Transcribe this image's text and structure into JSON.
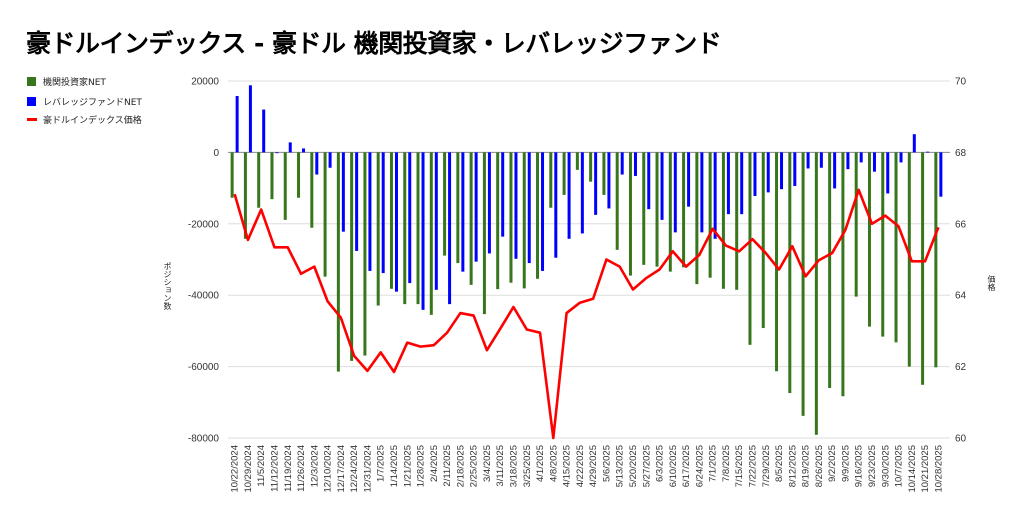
{
  "title": "豪ドルインデックス - 豪ドル 機関投資家・レバレッジファンド",
  "chart_data": {
    "type": "bar+line",
    "title": "豪ドルインデックス - 豪ドル 機関投資家・レバレッジファンド",
    "ylabel_left": "ポジション数",
    "ylabel_right": "価格",
    "ylim_left": [
      -80000,
      20000
    ],
    "yticks_left": [
      20000,
      0,
      -20000,
      -40000,
      -60000,
      -80000
    ],
    "ylim_right": [
      60,
      70
    ],
    "yticks_right": [
      70,
      68,
      66,
      64,
      62,
      60
    ],
    "grid": true,
    "legend_position": "top-left",
    "categories": [
      "10/22/2024",
      "10/29/2024",
      "11/5/2024",
      "11/12/2024",
      "11/19/2024",
      "11/26/2024",
      "12/3/2024",
      "12/10/2024",
      "12/17/2024",
      "12/24/2024",
      "12/31/2024",
      "1/7/2025",
      "1/14/2025",
      "1/21/2025",
      "1/28/2025",
      "2/4/2025",
      "2/11/2025",
      "2/18/2025",
      "2/25/2025",
      "3/4/2025",
      "3/11/2025",
      "3/18/2025",
      "3/25/2025",
      "4/1/2025",
      "4/8/2025",
      "4/15/2025",
      "4/22/2025",
      "4/29/2025",
      "5/6/2025",
      "5/13/2025",
      "5/20/2025",
      "5/27/2025",
      "6/3/2025",
      "6/10/2025",
      "6/17/2025",
      "6/24/2025",
      "7/1/2025",
      "7/8/2025",
      "7/15/2025",
      "7/22/2025",
      "7/29/2025",
      "8/5/2025",
      "8/12/2025",
      "8/19/2025",
      "8/26/2025",
      "9/2/2025",
      "9/9/2025",
      "9/16/2025",
      "9/23/2025",
      "9/30/2025",
      "10/7/2025",
      "10/14/2025",
      "10/21/2025",
      "10/28/2025"
    ],
    "series": [
      {
        "name": "機関投資家NET",
        "type": "bar",
        "axis": "left",
        "color": "#38761d",
        "values": [
          -12700,
          -24200,
          -15500,
          -13100,
          -18900,
          -12700,
          -21100,
          -34800,
          -61400,
          -58400,
          -56900,
          -42900,
          -38200,
          -42500,
          -42500,
          -45500,
          -28900,
          -31000,
          -37100,
          -45300,
          -38300,
          -36500,
          -38100,
          -35400,
          -15500,
          -11900,
          -4900,
          -8200,
          -11900,
          -27300,
          -34500,
          -31500,
          -32000,
          -33400,
          -32200,
          -36900,
          -35100,
          -38200,
          -38500,
          -53900,
          -49200,
          -61300,
          -67400,
          -73800,
          -79100,
          -66000,
          -68300,
          -40400,
          -48800,
          -51600,
          -53200,
          -60000,
          -65100,
          -60200
        ]
      },
      {
        "name": "レバレッジファンドNET",
        "type": "bar",
        "axis": "left",
        "color": "#0000ff",
        "values": [
          15800,
          18800,
          12000,
          -200,
          2800,
          1100,
          -6200,
          -4300,
          -22200,
          -27600,
          -33200,
          -33800,
          -39000,
          -36600,
          -44100,
          -38500,
          -42500,
          -33400,
          -30600,
          -28300,
          -23600,
          -29800,
          -31000,
          -33200,
          -29500,
          -24200,
          -22700,
          -17500,
          -15700,
          -6200,
          -6600,
          -15900,
          -18900,
          -22400,
          -15200,
          -22400,
          -24200,
          -17300,
          -17300,
          -12200,
          -11200,
          -10300,
          -9400,
          -4500,
          -4300,
          -10100,
          -4700,
          -2800,
          -5400,
          -11500,
          -2800,
          5100,
          200,
          -12400
        ]
      },
      {
        "name": "豪ドルインデックス価格",
        "type": "line",
        "axis": "right",
        "color": "#ff0000",
        "values": [
          66.83,
          65.55,
          66.4,
          65.34,
          65.34,
          64.6,
          64.8,
          63.83,
          63.37,
          62.3,
          61.88,
          62.4,
          61.85,
          62.67,
          62.56,
          62.6,
          62.95,
          63.5,
          63.43,
          62.46,
          63.06,
          63.67,
          63.04,
          62.95,
          60.0,
          63.5,
          63.79,
          63.9,
          65.0,
          64.8,
          64.16,
          64.48,
          64.72,
          65.23,
          64.8,
          65.13,
          65.86,
          65.39,
          65.23,
          65.57,
          65.18,
          64.72,
          65.37,
          64.53,
          64.98,
          65.18,
          65.83,
          66.95,
          66.0,
          66.23,
          65.93,
          64.95,
          64.95,
          65.9
        ]
      }
    ]
  }
}
